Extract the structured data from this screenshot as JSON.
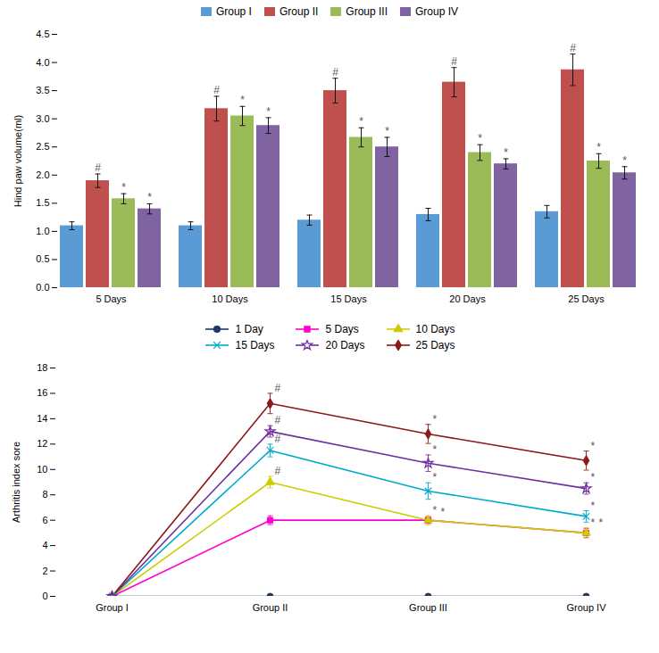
{
  "chart_data": [
    {
      "type": "bar",
      "ylabel": "Hind paw volume(ml)",
      "categories": [
        "5 Days",
        "10 Days",
        "15 Days",
        "20 Days",
        "25 Days"
      ],
      "series": [
        {
          "name": "Group I",
          "color": "#5B9BD5",
          "values": [
            1.1,
            1.1,
            1.2,
            1.3,
            1.35
          ],
          "errors": [
            0.07,
            0.07,
            0.09,
            0.11,
            0.11
          ]
        },
        {
          "name": "Group II",
          "color": "#C0504D",
          "values": [
            1.9,
            3.18,
            3.5,
            3.65,
            3.87
          ],
          "errors": [
            0.12,
            0.22,
            0.22,
            0.26,
            0.28
          ]
        },
        {
          "name": "Group III",
          "color": "#9BBB59",
          "values": [
            1.58,
            3.05,
            2.67,
            2.4,
            2.25
          ],
          "errors": [
            0.09,
            0.17,
            0.17,
            0.14,
            0.13
          ]
        },
        {
          "name": "Group IV",
          "color": "#8064A2",
          "values": [
            1.4,
            2.88,
            2.5,
            2.2,
            2.04
          ],
          "errors": [
            0.09,
            0.14,
            0.17,
            0.09,
            0.11
          ]
        }
      ],
      "ylim": [
        0,
        4.5
      ],
      "yticks": [
        {
          "value": 0,
          "label": "0.0"
        },
        {
          "value": 0.5,
          "label": "0.5"
        },
        {
          "value": 1.0,
          "label": "1.0"
        },
        {
          "value": 1.5,
          "label": "1.5"
        },
        {
          "value": 2.0,
          "label": "2.0"
        },
        {
          "value": 2.5,
          "label": "2.5"
        },
        {
          "value": 3.0,
          "label": "3.0"
        },
        {
          "value": 3.5,
          "label": "3.5"
        },
        {
          "value": 4.0,
          "label": "4.0"
        },
        {
          "value": 4.5,
          "label": "4.5"
        }
      ],
      "legend": "top",
      "annotations": [
        {
          "text": "#",
          "category": "5 Days",
          "series": "Group II"
        },
        {
          "text": "*",
          "category": "5 Days",
          "series": "Group III"
        },
        {
          "text": "*",
          "category": "5 Days",
          "series": "Group IV"
        },
        {
          "text": "#",
          "category": "10 Days",
          "series": "Group II"
        },
        {
          "text": "*",
          "category": "10 Days",
          "series": "Group III"
        },
        {
          "text": "*",
          "category": "10 Days",
          "series": "Group IV"
        },
        {
          "text": "#",
          "category": "15 Days",
          "series": "Group II"
        },
        {
          "text": "*",
          "category": "15 Days",
          "series": "Group III"
        },
        {
          "text": "*",
          "category": "15 Days",
          "series": "Group IV"
        },
        {
          "text": "#",
          "category": "20 Days",
          "series": "Group II"
        },
        {
          "text": "*",
          "category": "20 Days",
          "series": "Group III"
        },
        {
          "text": "*",
          "category": "20 Days",
          "series": "Group IV"
        },
        {
          "text": "#",
          "category": "25 Days",
          "series": "Group II"
        },
        {
          "text": "*",
          "category": "25 Days",
          "series": "Group III"
        },
        {
          "text": "*",
          "category": "25 Days",
          "series": "Group IV"
        }
      ]
    },
    {
      "type": "line",
      "ylabel": "Arthritis index sore",
      "categories": [
        "Group I",
        "Group II",
        "Group III",
        "Group IV"
      ],
      "series": [
        {
          "name": "1 Day",
          "color": "#1F3864",
          "marker": "circle",
          "values": [
            0,
            0,
            0,
            0
          ],
          "errors": [
            0,
            0,
            0,
            0
          ]
        },
        {
          "name": "5 Days",
          "color": "#FF00CC",
          "marker": "square",
          "values": [
            0,
            6.0,
            6.0,
            5.0
          ],
          "errors": [
            0,
            0.35,
            0.25,
            0.35
          ]
        },
        {
          "name": "10 Days",
          "color": "#CCCC00",
          "marker": "triangle",
          "values": [
            0,
            9.0,
            6.0,
            5.0
          ],
          "errors": [
            0,
            0.45,
            0.35,
            0.4
          ]
        },
        {
          "name": "15 Days",
          "color": "#00AACC",
          "marker": "times",
          "values": [
            0,
            11.5,
            8.3,
            6.3
          ],
          "errors": [
            0,
            0.5,
            0.65,
            0.45
          ]
        },
        {
          "name": "20 Days",
          "color": "#7030A0",
          "marker": "star",
          "values": [
            0,
            13.0,
            10.5,
            8.5
          ],
          "errors": [
            0,
            0.45,
            0.65,
            0.45
          ]
        },
        {
          "name": "25 Days",
          "color": "#8B1A1A",
          "marker": "diamond",
          "values": [
            0,
            15.2,
            12.8,
            10.7
          ],
          "errors": [
            0,
            0.8,
            0.75,
            0.75
          ]
        }
      ],
      "ylim": [
        0,
        18
      ],
      "yticks": [
        0,
        2,
        4,
        6,
        8,
        10,
        12,
        14,
        16,
        18
      ],
      "legend": "top",
      "annotations": [
        {
          "text": "#",
          "category": "Group II",
          "series": "25 Days"
        },
        {
          "text": "#",
          "category": "Group II",
          "series": "20 Days"
        },
        {
          "text": "#",
          "category": "Group II",
          "series": "15 Days"
        },
        {
          "text": "#",
          "category": "Group II",
          "series": "10 Days"
        },
        {
          "text": "*",
          "category": "Group III",
          "series": "25 Days"
        },
        {
          "text": "*",
          "category": "Group III",
          "series": "20 Days"
        },
        {
          "text": "*",
          "category": "Group III",
          "series": "15 Days"
        },
        {
          "text": "*",
          "category": "Group III",
          "series": "10 Days"
        },
        {
          "text": "*",
          "category": "Group III",
          "series": "5 Days"
        },
        {
          "text": "*",
          "category": "Group IV",
          "series": "25 Days"
        },
        {
          "text": "*",
          "category": "Group IV",
          "series": "20 Days"
        },
        {
          "text": "*",
          "category": "Group IV",
          "series": "15 Days"
        },
        {
          "text": "*",
          "category": "Group IV",
          "series": "10 Days"
        },
        {
          "text": "*",
          "category": "Group IV",
          "series": "5 Days"
        }
      ]
    }
  ]
}
